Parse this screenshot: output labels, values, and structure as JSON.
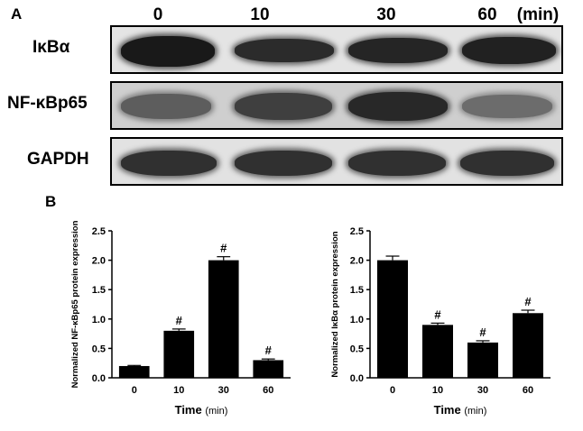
{
  "panel_a": {
    "label": "A",
    "lanes": [
      "0",
      "10",
      "30",
      "60"
    ],
    "unit": "(min)",
    "rows": [
      {
        "name": "IκBα",
        "band_darkness": [
          1.0,
          0.88,
          0.92,
          0.95
        ]
      },
      {
        "name": "NF-κBp65",
        "band_darkness": [
          0.55,
          0.75,
          0.9,
          0.45
        ]
      },
      {
        "name": "GAPDH",
        "band_darkness": [
          0.85,
          0.85,
          0.85,
          0.85
        ]
      }
    ]
  },
  "panel_b": {
    "label": "B"
  },
  "chart_data": [
    {
      "type": "bar",
      "categories": [
        "0",
        "10",
        "30",
        "60"
      ],
      "values": [
        0.2,
        0.8,
        2.0,
        0.3
      ],
      "errors": [
        0.01,
        0.03,
        0.06,
        0.02
      ],
      "significance": [
        "",
        "#",
        "#",
        "#"
      ],
      "ylabel": "Normalized NF-κBp65 protein expression",
      "xlabel": "Time",
      "xunit": "(min)",
      "ylim": [
        0,
        2.5
      ],
      "yticks": [
        "0.0",
        "0.5",
        "1.0",
        "1.5",
        "2.0",
        "2.5"
      ],
      "bar_color": "#000000"
    },
    {
      "type": "bar",
      "categories": [
        "0",
        "10",
        "30",
        "60"
      ],
      "values": [
        2.0,
        0.9,
        0.6,
        1.1
      ],
      "errors": [
        0.07,
        0.03,
        0.03,
        0.05
      ],
      "significance": [
        "",
        "#",
        "#",
        "#"
      ],
      "ylabel": "Normalized IκBα protein expression",
      "xlabel": "Time",
      "xunit": "(min)",
      "ylim": [
        0,
        2.5
      ],
      "yticks": [
        "0.0",
        "0.5",
        "1.0",
        "1.5",
        "2.0",
        "2.5"
      ],
      "bar_color": "#000000"
    }
  ]
}
